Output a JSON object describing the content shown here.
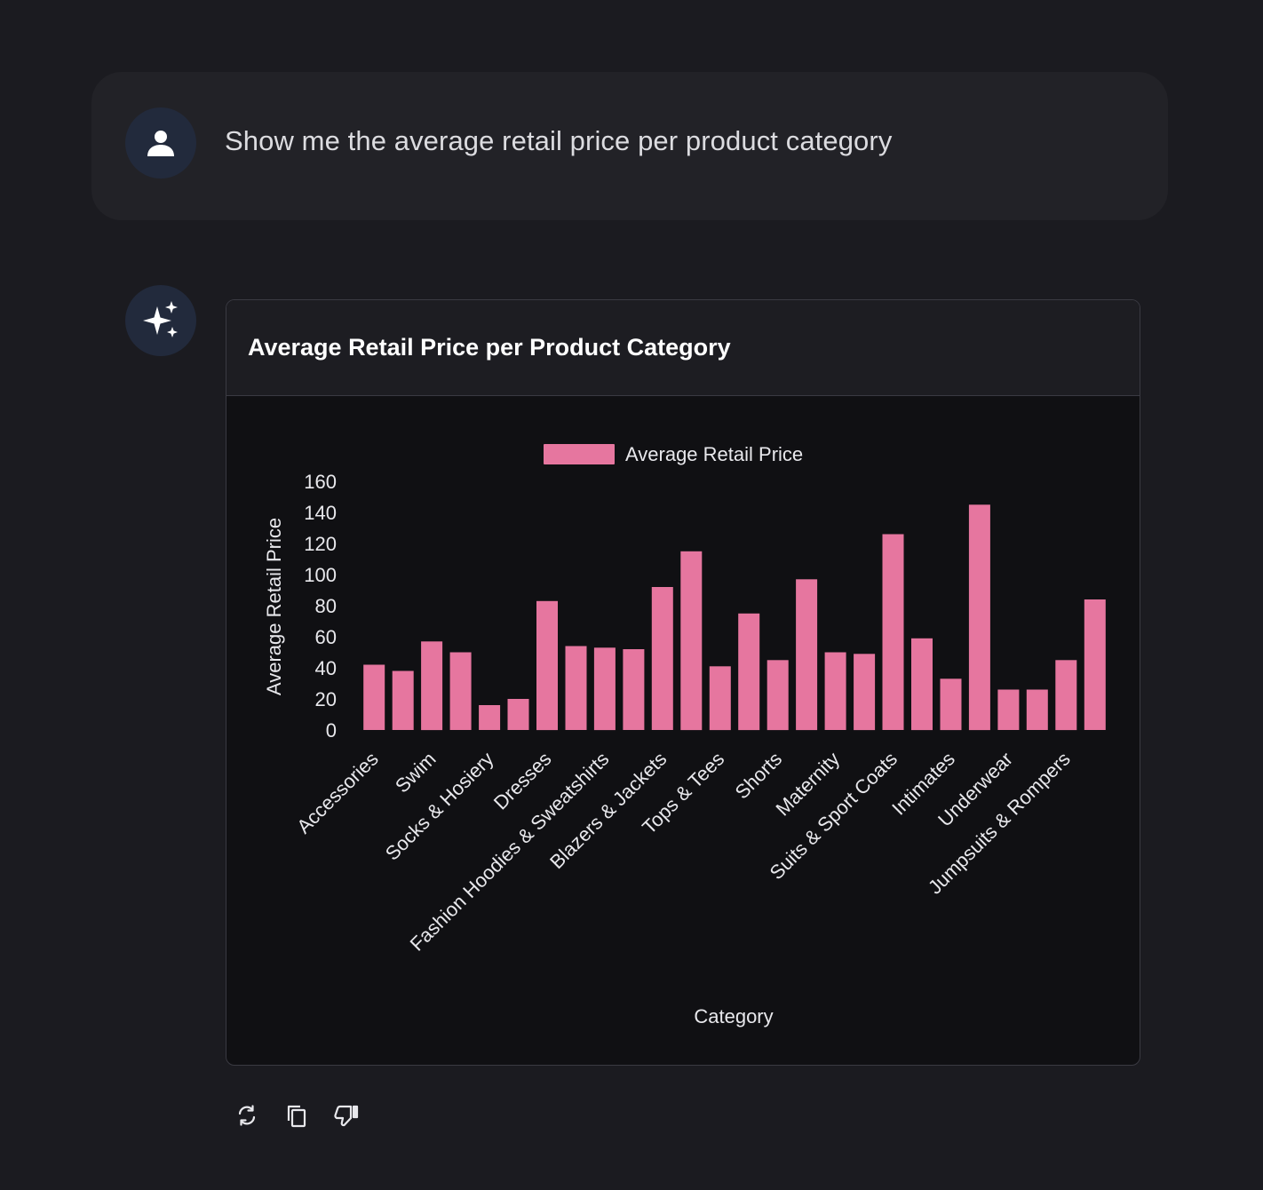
{
  "conversation": {
    "user_message": "Show me the average retail price per product category"
  },
  "chart_card": {
    "title": "Average Retail Price per Product Category"
  },
  "icons": {
    "user_avatar": "person-icon",
    "ai_avatar": "sparkles-icon",
    "regenerate": "refresh-icon",
    "copy": "copy-icon",
    "dislike": "thumbs-down-icon"
  },
  "colors": {
    "bar": "#e6769f",
    "background": "#1b1b20",
    "card": "#101013"
  },
  "chart_data": {
    "type": "bar",
    "legend": "Average Retail Price",
    "legend_position": "top",
    "xlabel": "Category",
    "ylabel": "Average Retail Price",
    "ylim": [
      0,
      160
    ],
    "yticks": [
      0,
      20,
      40,
      60,
      80,
      100,
      120,
      140,
      160
    ],
    "grid": false,
    "categories": [
      "Accessories",
      "",
      "Swim",
      "",
      "Socks & Hosiery",
      "",
      "Dresses",
      "",
      "Fashion Hoodies & Sweatshirts",
      "",
      "Blazers & Jackets",
      "",
      "Tops & Tees",
      "",
      "Shorts",
      "",
      "Maternity",
      "",
      "Suits & Sport Coats",
      "",
      "Intimates",
      "",
      "Underwear",
      "",
      "Jumpsuits & Rompers",
      ""
    ],
    "series": [
      {
        "name": "Average Retail Price",
        "values": [
          42,
          38,
          57,
          50,
          16,
          20,
          83,
          54,
          53,
          52,
          92,
          115,
          41,
          75,
          45,
          97,
          50,
          49,
          126,
          59,
          33,
          145,
          26,
          26,
          45,
          84
        ]
      }
    ]
  }
}
